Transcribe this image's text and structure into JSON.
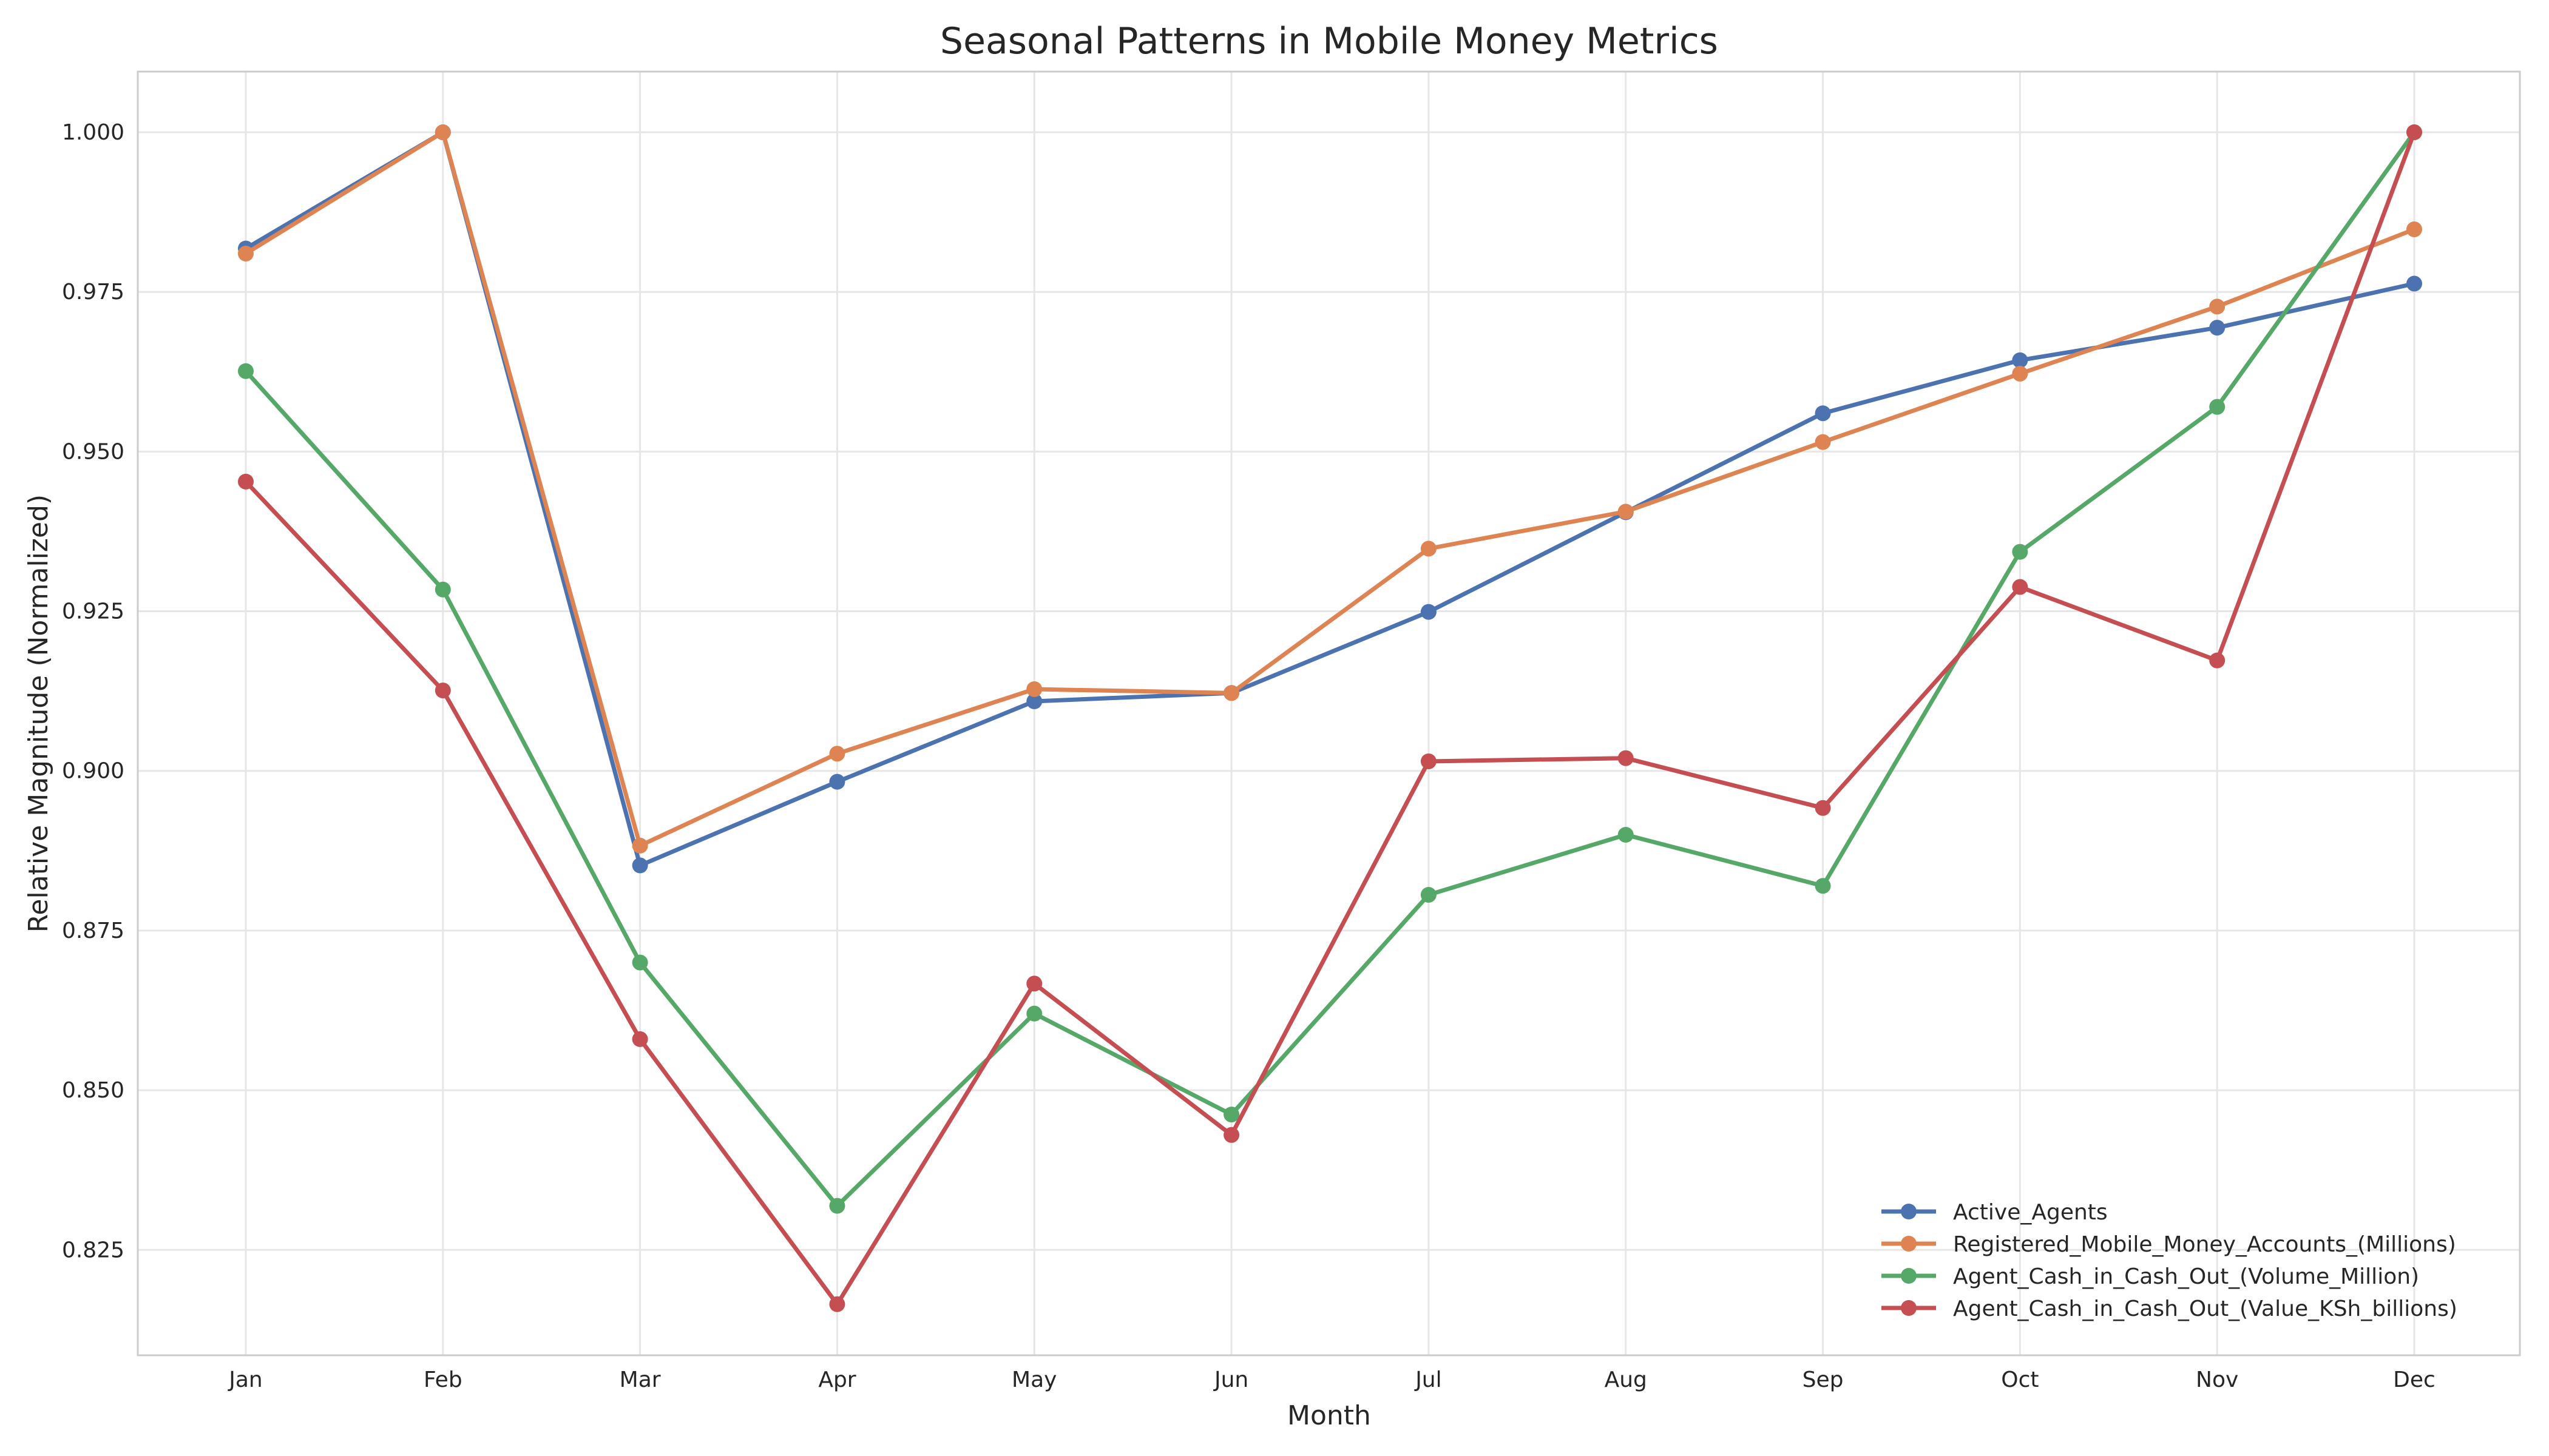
{
  "chart_data": {
    "type": "line",
    "title": "Seasonal Patterns in Mobile Money Metrics",
    "xlabel": "Month",
    "ylabel": "Relative Magnitude (Normalized)",
    "categories": [
      "Jan",
      "Feb",
      "Mar",
      "Apr",
      "May",
      "Jun",
      "Jul",
      "Aug",
      "Sep",
      "Oct",
      "Nov",
      "Dec"
    ],
    "ylim": [
      0.8085,
      1.0095
    ],
    "yticks": [
      "0.825",
      "0.850",
      "0.875",
      "0.900",
      "0.925",
      "0.950",
      "0.975",
      "1.000"
    ],
    "grid": true,
    "legend_position": "bottom-right",
    "series": [
      {
        "name": "Active_Agents",
        "color": "#4c72b0",
        "values": [
          0.9818,
          1.0,
          0.8852,
          0.8983,
          0.9109,
          0.9122,
          0.9249,
          0.9405,
          0.956,
          0.9643,
          0.9694,
          0.9763
        ]
      },
      {
        "name": "Registered_Mobile_Money_Accounts_(Millions)",
        "color": "#dd8452",
        "values": [
          0.981,
          1.0,
          0.8883,
          0.9027,
          0.9128,
          0.9122,
          0.9348,
          0.9406,
          0.9515,
          0.9622,
          0.9727,
          0.9848
        ]
      },
      {
        "name": "Agent_Cash_in_Cash_Out_(Volume_Million)",
        "color": "#55a868",
        "values": [
          0.9626,
          0.9284,
          0.87,
          0.8319,
          0.862,
          0.8462,
          0.8806,
          0.89,
          0.882,
          0.9343,
          0.957,
          1.0
        ]
      },
      {
        "name": "Agent_Cash_in_Cash_Out_(Value_KSh_billions)",
        "color": "#c44e52",
        "values": [
          0.9453,
          0.9126,
          0.858,
          0.8165,
          0.8667,
          0.843,
          0.9015,
          0.902,
          0.8942,
          0.9288,
          0.9173,
          1.0
        ]
      }
    ]
  }
}
